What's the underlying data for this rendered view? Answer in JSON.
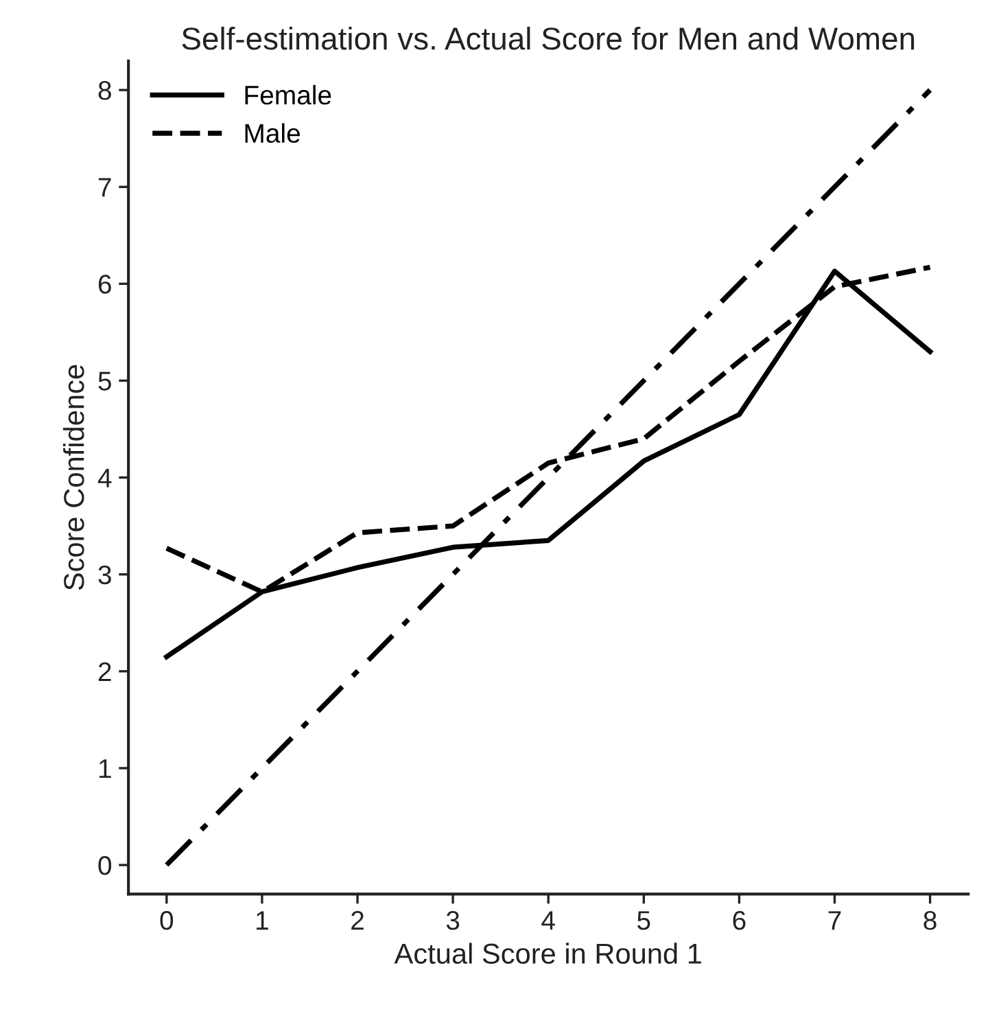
{
  "chart_data": {
    "type": "line",
    "title": "Self-estimation vs. Actual Score for Men and Women",
    "xlabel": "Actual Score in Round 1",
    "ylabel": "Score Confidence",
    "x": [
      0,
      1,
      2,
      3,
      4,
      5,
      6,
      7,
      8
    ],
    "series": [
      {
        "name": "Female",
        "color": "#000000",
        "line_style": "solid",
        "values": [
          2.15,
          2.82,
          3.07,
          3.28,
          3.35,
          4.17,
          4.65,
          6.13,
          5.3
        ]
      },
      {
        "name": "Male",
        "color": "#000000",
        "line_style": "dashed",
        "values": [
          3.27,
          2.82,
          3.43,
          3.5,
          4.15,
          4.4,
          5.2,
          5.97,
          6.17
        ]
      },
      {
        "color": "#000000",
        "line_style": "dashdot",
        "values": [
          0,
          1,
          2,
          3,
          4,
          5,
          6,
          7,
          8
        ]
      }
    ],
    "xlim": [
      -0.4,
      8.4
    ],
    "ylim": [
      -0.3,
      8.3
    ],
    "xticks": [
      0,
      1,
      2,
      3,
      4,
      5,
      6,
      7,
      8
    ],
    "yticks": [
      0,
      1,
      2,
      3,
      4,
      5,
      6,
      7,
      8
    ],
    "grid": false,
    "legend": "top left",
    "marker": "none"
  }
}
